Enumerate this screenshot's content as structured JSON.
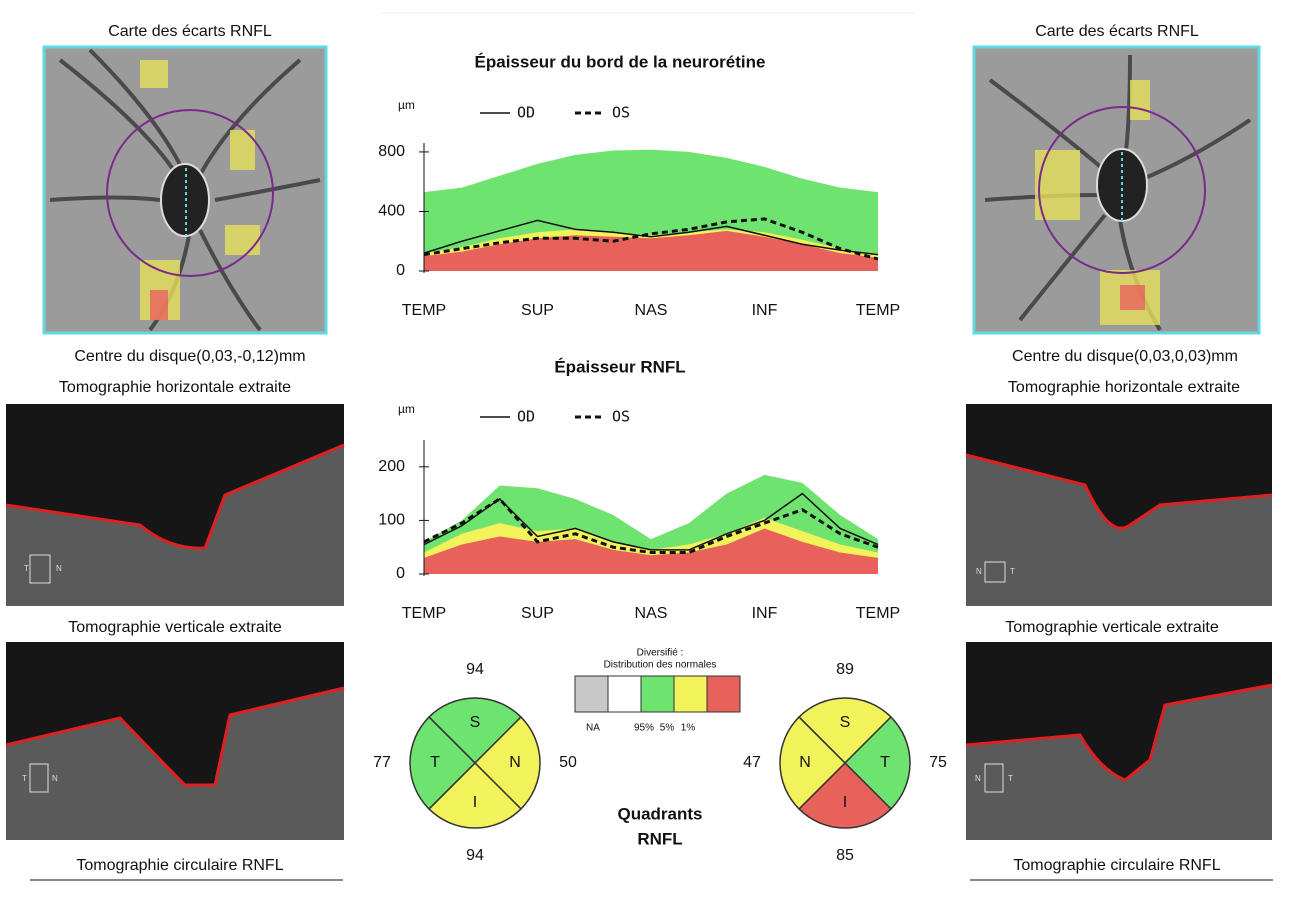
{
  "left": {
    "map_title": "Carte des écarts RNFL",
    "disc_center": "Centre du disque(0,03,-0,12)mm",
    "horizontal_title": "Tomographie horizontale extraite",
    "horizontal_labels": [
      "T",
      "N"
    ],
    "vertical_title": "Tomographie verticale extraite",
    "vertical_labels": [
      "T",
      "N"
    ],
    "circular_title": "Tomographie circulaire RNFL"
  },
  "right": {
    "map_title": "Carte des écarts RNFL",
    "disc_center": "Centre du disque(0,03,0,03)mm",
    "horizontal_title": "Tomographie horizontale extraite",
    "horizontal_labels": [
      "N",
      "T"
    ],
    "vertical_title": "Tomographie verticale extraite",
    "vertical_labels": [
      "N",
      "T"
    ],
    "circular_title": "Tomographie circulaire RNFL"
  },
  "normals_legend": {
    "title": "Diversifié :",
    "subtitle": "Distribution des normales",
    "labels": [
      "NA",
      "95%",
      "5%",
      "1%"
    ],
    "colors": [
      "#c8c8c8",
      "#ffffff",
      "#6fe36f",
      "#f2f25a",
      "#e8625c"
    ]
  },
  "quadrants_title": [
    "Quadrants",
    "RNFL"
  ],
  "chart_data": [
    {
      "type": "line",
      "title": "Épaisseur du bord de la neurorétine",
      "y_label": "µm",
      "categories": [
        "TEMP",
        null,
        null,
        "SUP",
        null,
        null,
        "NAS",
        null,
        null,
        "INF",
        null,
        null,
        "TEMP"
      ],
      "ylim": [
        0,
        860
      ],
      "yticks": [
        0,
        400,
        800
      ],
      "bands": [
        {
          "color": "#6fe36f",
          "values": [
            530,
            560,
            640,
            720,
            780,
            810,
            815,
            800,
            760,
            700,
            620,
            560,
            530
          ]
        },
        {
          "color": "#f2f25a",
          "values": [
            120,
            160,
            220,
            260,
            280,
            260,
            240,
            260,
            280,
            260,
            210,
            150,
            110
          ]
        },
        {
          "color": "#e8625c",
          "values": [
            100,
            130,
            180,
            220,
            240,
            230,
            220,
            240,
            270,
            230,
            180,
            120,
            90
          ]
        }
      ],
      "series": [
        {
          "name": "OD",
          "color": "#111111",
          "line_style": "solid",
          "values": [
            120,
            200,
            270,
            340,
            280,
            260,
            230,
            260,
            300,
            240,
            180,
            140,
            110
          ]
        },
        {
          "name": "OS",
          "color": "#111111",
          "line_style": "dashed",
          "values": [
            110,
            150,
            190,
            220,
            220,
            200,
            250,
            280,
            330,
            350,
            260,
            150,
            80
          ]
        }
      ]
    },
    {
      "type": "line",
      "title": "Épaisseur RNFL",
      "y_label": "µm",
      "categories": [
        "TEMP",
        null,
        null,
        "SUP",
        null,
        null,
        "NAS",
        null,
        null,
        "INF",
        null,
        null,
        "TEMP"
      ],
      "ylim": [
        0,
        250
      ],
      "yticks": [
        0,
        100,
        200
      ],
      "bands": [
        {
          "color": "#6fe36f",
          "values": [
            60,
            100,
            165,
            160,
            140,
            110,
            65,
            95,
            150,
            185,
            170,
            110,
            65
          ]
        },
        {
          "color": "#f2f25a",
          "values": [
            40,
            75,
            95,
            80,
            85,
            60,
            45,
            55,
            75,
            105,
            80,
            55,
            40
          ]
        },
        {
          "color": "#e8625c",
          "values": [
            30,
            55,
            70,
            60,
            65,
            45,
            35,
            40,
            55,
            85,
            60,
            40,
            30
          ]
        }
      ],
      "series": [
        {
          "name": "OD",
          "color": "#111111",
          "line_style": "solid",
          "values": [
            55,
            90,
            140,
            70,
            85,
            60,
            45,
            45,
            75,
            100,
            150,
            85,
            55
          ]
        },
        {
          "name": "OS",
          "color": "#111111",
          "line_style": "dashed",
          "values": [
            60,
            95,
            140,
            60,
            75,
            50,
            40,
            40,
            70,
            95,
            120,
            75,
            50
          ]
        }
      ]
    },
    {
      "type": "quadrant",
      "categories": [
        "S",
        "N",
        "I",
        "T"
      ],
      "values": [
        94,
        50,
        94,
        77
      ],
      "colors": [
        "#6fe36f",
        "#f2f25a",
        "#f2f25a",
        "#6fe36f"
      ]
    },
    {
      "type": "quadrant",
      "categories": [
        "S",
        "T",
        "I",
        "N"
      ],
      "values": [
        89,
        75,
        85,
        47
      ],
      "colors": [
        "#f2f25a",
        "#6fe36f",
        "#e8625c",
        "#f2f25a"
      ]
    }
  ]
}
